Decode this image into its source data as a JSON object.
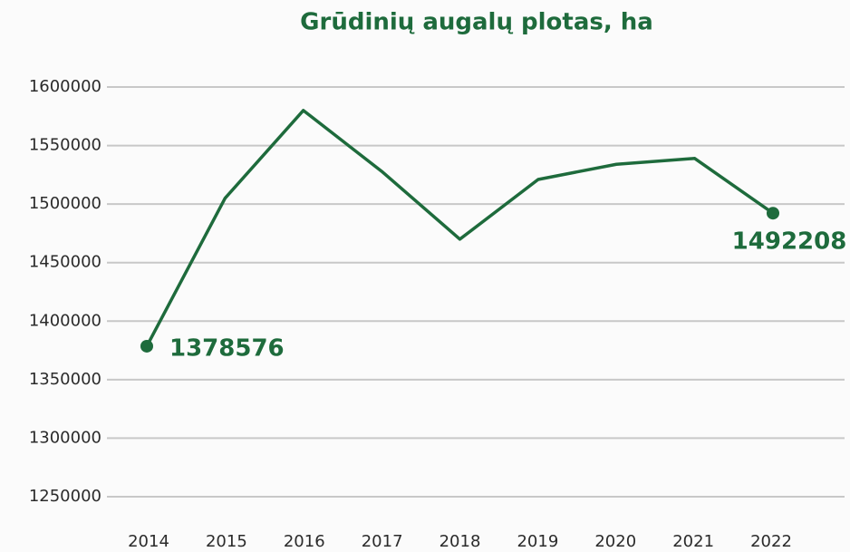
{
  "chart_data": {
    "type": "line",
    "title": "Grūdinių augalų plotas, ha",
    "categories": [
      "2014",
      "2015",
      "2016",
      "2017",
      "2018",
      "2019",
      "2020",
      "2021",
      "2022"
    ],
    "series": [
      {
        "name": "Grūdinių augalų plotas",
        "color": "#1e6b3c",
        "values": [
          1378576,
          1505000,
          1580000,
          1528000,
          1470000,
          1521000,
          1534000,
          1539000,
          1492208
        ],
        "value_labels": [
          "1378576",
          null,
          null,
          null,
          null,
          null,
          null,
          null,
          "1492208"
        ]
      }
    ],
    "ylim": [
      1250000,
      1600000
    ],
    "yticks": [
      1250000,
      1300000,
      1350000,
      1400000,
      1450000,
      1500000,
      1550000,
      1600000
    ],
    "grid": true,
    "legend": false
  }
}
